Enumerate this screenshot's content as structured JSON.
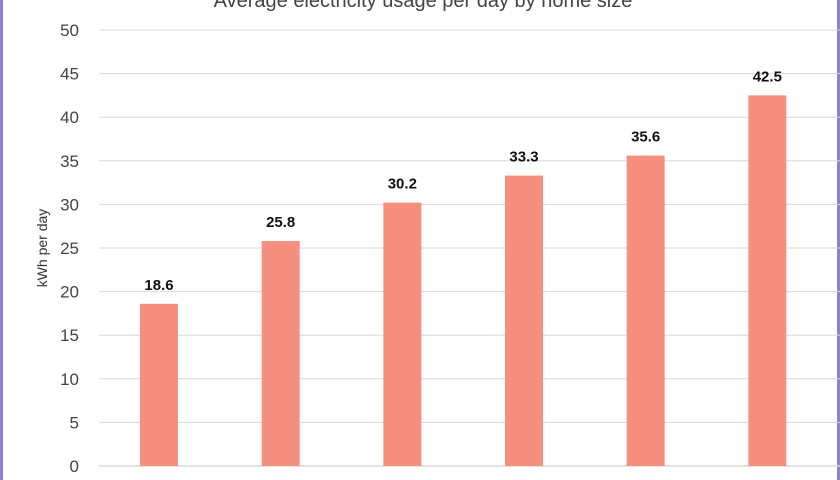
{
  "chart_data": {
    "type": "bar",
    "title": "Average electricity usage per day by home size",
    "ylabel": "kWh per day",
    "xlabel": "",
    "categories": [
      "",
      "",
      "",
      "",
      "",
      ""
    ],
    "values": [
      18.6,
      25.8,
      30.2,
      33.3,
      35.6,
      42.5
    ],
    "data_labels": [
      "18.6",
      "25.8",
      "30.2",
      "33.3",
      "35.6",
      "42.5"
    ],
    "ylim": [
      0,
      50
    ],
    "yticks": [
      "0",
      "5",
      "10",
      "15",
      "20",
      "25",
      "30",
      "35",
      "40",
      "45",
      "50"
    ],
    "grid": true,
    "bar_color": "#f78f7e",
    "grid_color": "#d9d9d9"
  }
}
